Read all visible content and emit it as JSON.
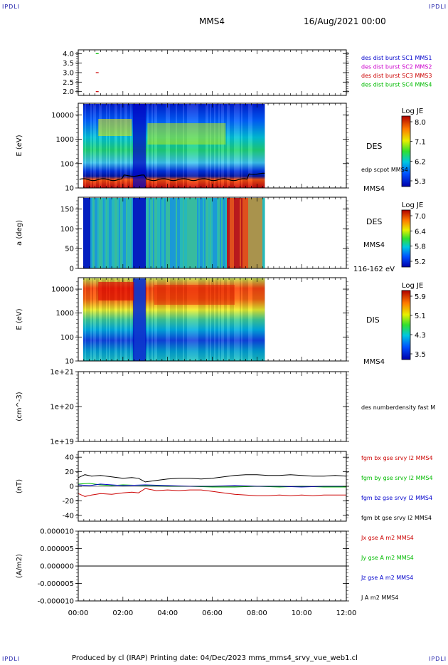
{
  "header": {
    "corner_tl": "IPDLI",
    "corner_tr": "IPDLI",
    "corner_bl": "IPDLI",
    "corner_br": "IPDLI",
    "spacecraft": "MMS4",
    "date": "16/Aug/2021 00:00"
  },
  "footer": {
    "text": "Produced by cl (IRAP)   Printing date: 04/Dec/2023   mms_mms4_srvy_vue_web1.cl"
  },
  "colors": {
    "blue": "#0000cc",
    "magenta": "#cc00cc",
    "red": "#cc0000",
    "green": "#00bb00",
    "black": "#000000"
  },
  "chart_data": [
    {
      "type": "scatter",
      "yticks": [
        "4.0",
        "3.5",
        "3.0",
        "2.5",
        "2.0"
      ],
      "ylim": [
        1.8,
        4.2
      ],
      "legend": [
        {
          "label": "des dist burst SC1 MMS1",
          "color": "#0000cc"
        },
        {
          "label": "des dist burst SC2 MMS2",
          "color": "#cc00cc"
        },
        {
          "label": "des dist burst SC3 MMS3",
          "color": "#cc0000"
        },
        {
          "label": "des dist burst SC4 MMS4",
          "color": "#00bb00"
        }
      ],
      "series": [
        {
          "color": "#00bb00",
          "points": [
            {
              "x": 0.85,
              "y": 4.0
            }
          ]
        },
        {
          "color": "#cc0000",
          "points": [
            {
              "x": 0.85,
              "y": 3.0
            },
            {
              "x": 0.85,
              "y": 2.0
            }
          ]
        }
      ]
    },
    {
      "type": "heatmap",
      "ylabel": "E (eV)",
      "yticks": [
        "10000",
        "1000",
        "100",
        "10"
      ],
      "yscale": "log",
      "ylim": [
        10,
        30000
      ],
      "right_labels": [
        "DES",
        "edp scpot MMS4",
        "MMS4"
      ],
      "colorbar": {
        "title": "Log JE",
        "ticks": [
          "8.0",
          "7.1",
          "6.2",
          "5.3"
        ]
      }
    },
    {
      "type": "heatmap",
      "ylabel": "a (deg)",
      "yticks": [
        "150",
        "100",
        "50",
        "0"
      ],
      "ylim": [
        0,
        180
      ],
      "right_labels": [
        "DES",
        "MMS4",
        "116-162 eV"
      ],
      "colorbar": {
        "title": "Log JE",
        "ticks": [
          "7.0",
          "6.4",
          "5.8",
          "5.2"
        ]
      }
    },
    {
      "type": "heatmap",
      "ylabel": "E (eV)",
      "yticks": [
        "10000",
        "1000",
        "100",
        "10"
      ],
      "yscale": "log",
      "ylim": [
        10,
        30000
      ],
      "right_labels": [
        "DIS",
        "MMS4"
      ],
      "colorbar": {
        "title": "Log JE",
        "ticks": [
          "5.9",
          "5.1",
          "4.3",
          "3.5"
        ]
      }
    },
    {
      "type": "line",
      "ylabel": "(cm^-3)",
      "yticks": [
        "1e+21",
        "1e+20",
        "1e+19"
      ],
      "yscale": "log",
      "ylim": [
        1e+19,
        1e+21
      ],
      "legend": [
        {
          "label": "des numberdensity fast M",
          "color": "#000000"
        }
      ],
      "series": []
    },
    {
      "type": "line",
      "ylabel": "(nT)",
      "yticks": [
        "40",
        "20",
        "0",
        "-20",
        "-40"
      ],
      "ylim": [
        -48,
        48
      ],
      "legend": [
        {
          "label": "fgm bx gse srvy l2 MMS4",
          "color": "#cc0000"
        },
        {
          "label": "fgm by gse srvy l2 MMS4",
          "color": "#00bb00"
        },
        {
          "label": "fgm bz gse srvy l2 MMS4",
          "color": "#0000cc"
        },
        {
          "label": "fgm bt gse srvy l2 MMS4",
          "color": "#000000"
        }
      ],
      "series": [
        {
          "name": "fgm bt gse srvy l2 MMS4",
          "color": "#000000",
          "x": [
            0,
            0.3,
            0.6,
            1.0,
            1.5,
            2.0,
            2.4,
            2.7,
            3.0,
            3.5,
            4.0,
            4.5,
            5.0,
            5.5,
            6.0,
            6.5,
            7.0,
            7.5,
            8.0,
            8.5,
            9.0,
            9.5,
            10.0,
            10.5,
            11.0,
            11.5,
            12.0
          ],
          "y": [
            12,
            16,
            14,
            15,
            13,
            11,
            12,
            11,
            6,
            8,
            10,
            11,
            11,
            10,
            11,
            13,
            15,
            16,
            16,
            15,
            15,
            16,
            15,
            14,
            14,
            15,
            14
          ]
        },
        {
          "name": "fgm bx gse srvy l2 MMS4",
          "color": "#cc0000",
          "x": [
            0,
            0.3,
            0.6,
            1.0,
            1.5,
            2.0,
            2.4,
            2.7,
            3.0,
            3.5,
            4.0,
            4.5,
            5.0,
            5.5,
            6.0,
            6.5,
            7.0,
            7.5,
            8.0,
            8.5,
            9.0,
            9.5,
            10.0,
            10.5,
            11.0,
            11.5,
            12.0
          ],
          "y": [
            -10,
            -14,
            -12,
            -10,
            -11,
            -9,
            -8,
            -9,
            -3,
            -6,
            -5,
            -6,
            -5,
            -5,
            -7,
            -9,
            -11,
            -12,
            -13,
            -13,
            -12,
            -13,
            -12,
            -13,
            -12,
            -12,
            -12
          ]
        },
        {
          "name": "fgm by gse srvy l2 MMS4",
          "color": "#00bb00",
          "x": [
            0,
            0.5,
            1.0,
            1.5,
            2.0,
            3.0,
            4.0,
            5.0,
            6.0,
            7.0,
            8.0,
            9.0,
            10.0,
            11.0,
            12.0
          ],
          "y": [
            3,
            4,
            2,
            1,
            2,
            1,
            0,
            0,
            -1,
            -1,
            0,
            -1,
            0,
            -1,
            -1
          ]
        },
        {
          "name": "fgm bz gse srvy l2 MMS4",
          "color": "#0000cc",
          "x": [
            0,
            0.5,
            1.0,
            1.5,
            2.0,
            3.0,
            4.0,
            5.0,
            6.0,
            7.0,
            8.0,
            9.0,
            10.0,
            11.0,
            12.0
          ],
          "y": [
            2,
            1,
            3,
            2,
            1,
            2,
            1,
            0,
            0,
            1,
            0,
            0,
            -1,
            0,
            0
          ]
        }
      ]
    },
    {
      "type": "line",
      "ylabel": "(A/m2)",
      "yticks": [
        "0.000010",
        "0.000005",
        "0.000000",
        "-0.000005",
        "-0.000010"
      ],
      "ylim": [
        -1e-05,
        1e-05
      ],
      "legend": [
        {
          "label": "Jx gse A m2 MMS4",
          "color": "#cc0000"
        },
        {
          "label": "Jy gse A m2 MMS4",
          "color": "#00bb00"
        },
        {
          "label": "Jz gse A m2 MMS4",
          "color": "#0000cc"
        },
        {
          "label": "J A m2 MMS4",
          "color": "#000000"
        }
      ],
      "series": [
        {
          "name": "J A m2 MMS4",
          "color": "#000000",
          "x": [
            0,
            12
          ],
          "y": [
            0,
            0
          ]
        }
      ]
    }
  ],
  "xaxis": {
    "ticks": [
      "00:00",
      "02:00",
      "04:00",
      "06:00",
      "08:00",
      "10:00",
      "12:00"
    ],
    "xlim": [
      0,
      12
    ]
  }
}
